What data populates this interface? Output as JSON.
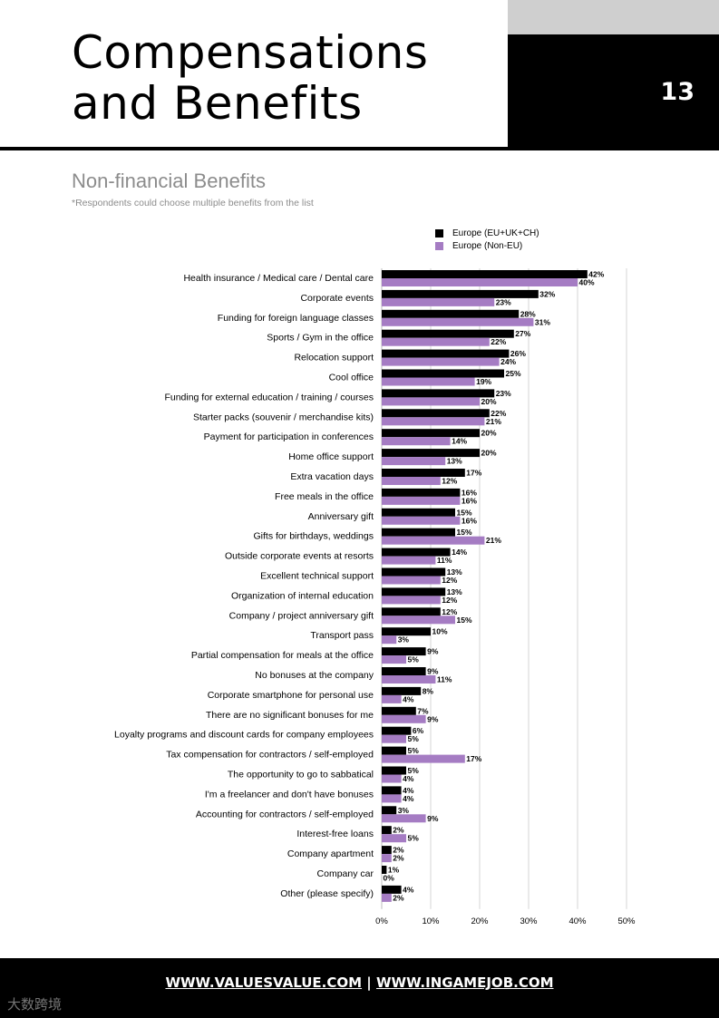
{
  "header": {
    "title_line1": "Compensations",
    "title_line2": "and Benefits",
    "page_number": "13"
  },
  "section": {
    "subtitle": "Non-financial Benefits",
    "note": "*Respondents could choose multiple benefits from the list"
  },
  "colors": {
    "series_1": "#000000",
    "series_2": "#a57cc3",
    "grid": "#d4d4d4"
  },
  "chart_data": {
    "type": "bar",
    "orientation": "horizontal",
    "xlim": [
      0,
      50
    ],
    "ticks": [
      "0%",
      "10%",
      "20%",
      "30%",
      "40%",
      "50%"
    ],
    "tick_values": [
      0,
      10,
      20,
      30,
      40,
      50
    ],
    "legend_position": "top-right",
    "categories": [
      "Health insurance / Medical care / Dental care",
      "Corporate events",
      "Funding for foreign language classes",
      "Sports / Gym in the office",
      "Relocation support",
      "Cool office",
      "Funding for external education / training / courses",
      "Starter packs (souvenir / merchandise kits)",
      "Payment for participation in conferences",
      "Home office support",
      "Extra vacation days",
      "Free meals in the office",
      "Anniversary gift",
      "Gifts for birthdays, weddings",
      "Outside corporate events at resorts",
      "Excellent technical support",
      "Organization of internal education",
      "Company / project anniversary gift",
      "Transport pass",
      "Partial compensation for meals at the office",
      "No bonuses at the company",
      "Corporate smartphone for personal use",
      "There are no significant bonuses for me",
      "Loyalty programs and discount cards for company employees",
      "Tax compensation for contractors / self-employed",
      "The opportunity to go to sabbatical",
      "I'm a freelancer and don't have bonuses",
      "Accounting for contractors / self-employed",
      "Interest-free loans",
      "Company apartment",
      "Company car",
      "Other (please specify)"
    ],
    "series": [
      {
        "name": "Europe (EU+UK+CH)",
        "values": [
          42,
          32,
          28,
          27,
          26,
          25,
          23,
          22,
          20,
          20,
          17,
          16,
          15,
          15,
          14,
          13,
          13,
          12,
          10,
          9,
          9,
          8,
          7,
          6,
          5,
          5,
          4,
          3,
          2,
          2,
          1,
          4
        ]
      },
      {
        "name": "Europe (Non-EU)",
        "values": [
          40,
          23,
          31,
          22,
          24,
          19,
          20,
          21,
          14,
          13,
          12,
          16,
          16,
          21,
          11,
          12,
          12,
          15,
          3,
          5,
          11,
          4,
          9,
          5,
          17,
          4,
          4,
          9,
          5,
          2,
          0,
          2
        ]
      }
    ]
  },
  "footer": {
    "link1": "WWW.VALUESVALUE.COM",
    "separator": " | ",
    "link2": "WWW.INGAMEJOB.COM"
  },
  "watermark": {
    "text": "大数跨境"
  }
}
